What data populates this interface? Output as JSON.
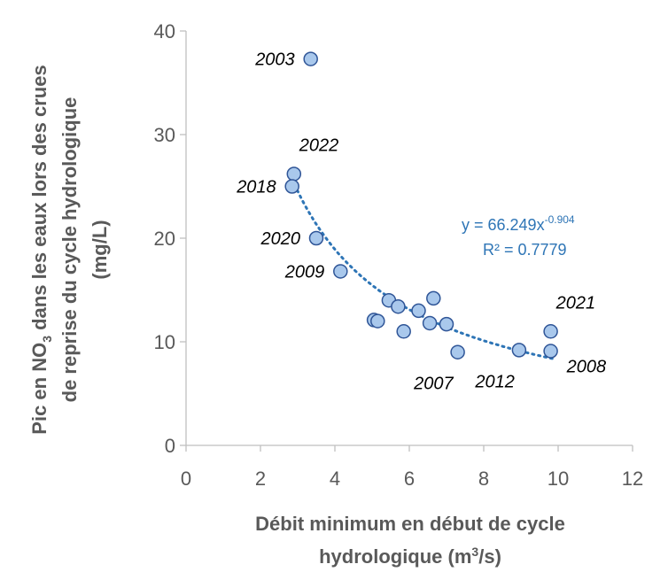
{
  "chart_data": {
    "type": "scatter",
    "title": "",
    "xlabel": "Débit minimum en début de cycle hydrologique (m³/s)",
    "xlabel_line1": "Débit minimum en début de cycle",
    "xlabel_line2_pre": "hydrologique (m",
    "xlabel_line2_sup": "3",
    "xlabel_line2_post": "/s)",
    "ylabel": "Pic en NO3 dans les eaux lors des crues de reprise du cycle hydrologique (mg/L)",
    "ylabel_line1_pre": "Pic en NO",
    "ylabel_line1_sub": "3",
    "ylabel_line1_post": " dans les eaux lors des crues",
    "ylabel_line2": "de reprise du cycle hydrologique",
    "ylabel_line3": "(mg/L)",
    "xlim": [
      0,
      12
    ],
    "ylim": [
      0,
      40
    ],
    "xticks": [
      0,
      2,
      4,
      6,
      8,
      10,
      12
    ],
    "yticks": [
      0,
      10,
      20,
      30,
      40
    ],
    "xtick_labels": [
      "0",
      "2",
      "4",
      "6",
      "8",
      "10",
      "12"
    ],
    "ytick_labels": [
      "0",
      "10",
      "20",
      "30",
      "40"
    ],
    "grid": false,
    "colors": {
      "marker_fill": "#a9c8ec",
      "marker_edge": "#2f5597",
      "trend": "#2e75b6",
      "axis": "#bfbfbf"
    },
    "series": [
      {
        "name": "Pic NO3",
        "points": [
          {
            "x": 3.35,
            "y": 37.3
          },
          {
            "x": 2.9,
            "y": 26.2
          },
          {
            "x": 2.85,
            "y": 25.0
          },
          {
            "x": 3.5,
            "y": 20.0
          },
          {
            "x": 4.15,
            "y": 16.8
          },
          {
            "x": 5.45,
            "y": 14.0
          },
          {
            "x": 5.7,
            "y": 13.4
          },
          {
            "x": 6.25,
            "y": 13.0
          },
          {
            "x": 6.65,
            "y": 14.2
          },
          {
            "x": 5.05,
            "y": 12.1
          },
          {
            "x": 5.15,
            "y": 12.0
          },
          {
            "x": 6.55,
            "y": 11.8
          },
          {
            "x": 7.0,
            "y": 11.7
          },
          {
            "x": 5.85,
            "y": 11.0
          },
          {
            "x": 7.3,
            "y": 9.0
          },
          {
            "x": 8.95,
            "y": 9.2
          },
          {
            "x": 9.8,
            "y": 11.0
          },
          {
            "x": 9.8,
            "y": 9.1
          }
        ]
      }
    ],
    "annotations": [
      {
        "text": "2003",
        "x": 3.35,
        "y": 37.3,
        "pos": "left"
      },
      {
        "text": "2022",
        "x": 2.9,
        "y": 26.2,
        "pos": "above-right"
      },
      {
        "text": "2018",
        "x": 2.85,
        "y": 25.0,
        "pos": "left"
      },
      {
        "text": "2020",
        "x": 3.5,
        "y": 20.0,
        "pos": "left"
      },
      {
        "text": "2009",
        "x": 4.15,
        "y": 16.8,
        "pos": "left"
      },
      {
        "text": "2007",
        "x": 7.3,
        "y": 9.0,
        "pos": "below-left"
      },
      {
        "text": "2012",
        "x": 8.95,
        "y": 9.2,
        "pos": "below-left"
      },
      {
        "text": "2021",
        "x": 9.8,
        "y": 11.0,
        "pos": "above-right"
      },
      {
        "text": "2008",
        "x": 9.8,
        "y": 9.1,
        "pos": "below-right"
      }
    ],
    "trendline": {
      "type": "power",
      "a": 66.249,
      "b": -0.904,
      "x_range": [
        2.85,
        9.85
      ],
      "equation_pre": "y = 66.249x",
      "equation_sup": "-0.904",
      "r2_label": "R² = 0.7779"
    }
  }
}
